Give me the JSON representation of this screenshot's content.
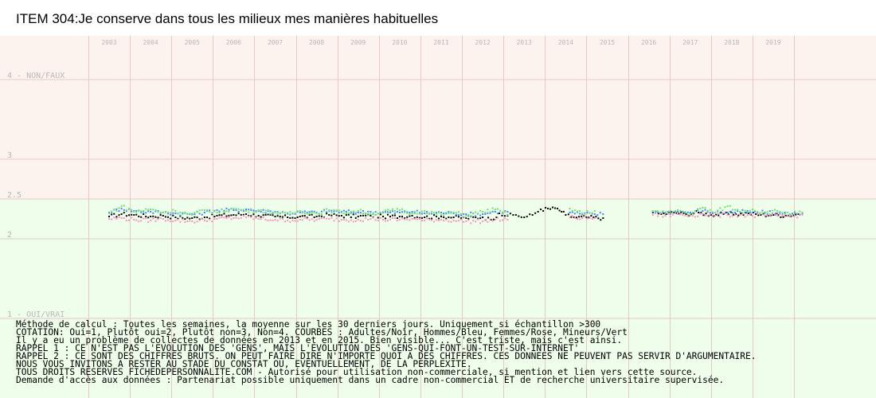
{
  "chart_data": {
    "type": "scatter",
    "title": "ITEM 304:Je conserve dans tous les milieux mes manières habituelles",
    "xlabel": "",
    "ylabel": "",
    "xlim": [
      2002.5,
      2020
    ],
    "ylim": [
      1,
      4
    ],
    "grid": true,
    "x_ticks": [
      "2003",
      "2004",
      "2005",
      "2006",
      "2007",
      "2008",
      "2009",
      "2010",
      "2011",
      "2012",
      "2013",
      "2014",
      "2015",
      "2016",
      "2017",
      "2018",
      "2019"
    ],
    "y_ticks": [
      {
        "value": 4,
        "label": "4 - NON/FAUX"
      },
      {
        "value": 3,
        "label": "3"
      },
      {
        "value": 2.5,
        "label": "2.5"
      },
      {
        "value": 2,
        "label": "2"
      },
      {
        "value": 1,
        "label": "1 - OUI/VRAI"
      }
    ],
    "band_colors": {
      "above_2_5": "#fdf3ee",
      "below_2_5": "#effdeb",
      "grid": "#e6c8c8"
    },
    "series": [
      {
        "color": "#000000",
        "points": [
          [
            2003.0,
            2.28
          ],
          [
            2003.3,
            2.31
          ],
          [
            2003.6,
            2.3
          ],
          [
            2004.0,
            2.28
          ],
          [
            2004.3,
            2.29
          ],
          [
            2004.6,
            2.27
          ],
          [
            2005.0,
            2.26
          ],
          [
            2005.3,
            2.27
          ],
          [
            2005.6,
            2.29
          ],
          [
            2006.0,
            2.3
          ],
          [
            2006.3,
            2.31
          ],
          [
            2006.6,
            2.29
          ],
          [
            2007.0,
            2.28
          ],
          [
            2007.3,
            2.27
          ],
          [
            2007.6,
            2.28
          ],
          [
            2008.0,
            2.28
          ],
          [
            2008.3,
            2.3
          ],
          [
            2008.6,
            2.29
          ],
          [
            2009.0,
            2.28
          ],
          [
            2009.3,
            2.29
          ],
          [
            2009.6,
            2.28
          ],
          [
            2010.0,
            2.28
          ],
          [
            2010.3,
            2.29
          ],
          [
            2010.6,
            2.27
          ],
          [
            2011.0,
            2.28
          ],
          [
            2011.3,
            2.27
          ],
          [
            2011.6,
            2.26
          ],
          [
            2012.0,
            2.27
          ],
          [
            2012.2,
            2.24
          ],
          [
            2012.4,
            2.32
          ],
          [
            2012.6,
            2.29
          ],
          [
            2012.8,
            2.3
          ],
          [
            2013.0,
            2.27
          ],
          [
            2013.2,
            2.3
          ],
          [
            2013.4,
            2.37
          ],
          [
            2013.8,
            2.38
          ],
          [
            2013.9,
            2.34
          ],
          [
            2014.0,
            2.3
          ],
          [
            2014.2,
            2.27
          ],
          [
            2014.5,
            2.27
          ],
          [
            2014.9,
            2.26
          ],
          [
            2016.1,
            2.33
          ],
          [
            2016.3,
            2.31
          ],
          [
            2016.6,
            2.33
          ],
          [
            2016.9,
            2.31
          ],
          [
            2017.2,
            2.33
          ],
          [
            2017.5,
            2.3
          ],
          [
            2017.8,
            2.31
          ],
          [
            2018.1,
            2.31
          ],
          [
            2018.4,
            2.32
          ],
          [
            2018.7,
            2.3
          ],
          [
            2019.0,
            2.3
          ],
          [
            2019.3,
            2.29
          ],
          [
            2019.6,
            2.31
          ]
        ]
      },
      {
        "color": "#3f86ff",
        "points": [
          [
            2003.0,
            2.33
          ],
          [
            2003.3,
            2.38
          ],
          [
            2003.6,
            2.35
          ],
          [
            2004.0,
            2.34
          ],
          [
            2004.3,
            2.33
          ],
          [
            2004.6,
            2.32
          ],
          [
            2005.0,
            2.31
          ],
          [
            2005.3,
            2.33
          ],
          [
            2005.6,
            2.36
          ],
          [
            2006.0,
            2.36
          ],
          [
            2006.3,
            2.37
          ],
          [
            2006.6,
            2.35
          ],
          [
            2007.0,
            2.34
          ],
          [
            2007.3,
            2.32
          ],
          [
            2007.6,
            2.33
          ],
          [
            2008.0,
            2.33
          ],
          [
            2008.3,
            2.35
          ],
          [
            2008.6,
            2.34
          ],
          [
            2009.0,
            2.33
          ],
          [
            2009.3,
            2.34
          ],
          [
            2009.6,
            2.33
          ],
          [
            2010.0,
            2.33
          ],
          [
            2010.3,
            2.34
          ],
          [
            2010.6,
            2.32
          ],
          [
            2011.0,
            2.33
          ],
          [
            2011.3,
            2.32
          ],
          [
            2011.6,
            2.31
          ],
          [
            2012.0,
            2.31
          ],
          [
            2012.3,
            2.34
          ],
          [
            2012.6,
            2.34
          ],
          [
            2014.1,
            2.33
          ],
          [
            2014.4,
            2.31
          ],
          [
            2014.7,
            2.31
          ],
          [
            2014.9,
            2.31
          ],
          [
            2016.1,
            2.34
          ],
          [
            2016.4,
            2.33
          ],
          [
            2016.7,
            2.34
          ],
          [
            2017.0,
            2.33
          ],
          [
            2017.3,
            2.35
          ],
          [
            2017.6,
            2.33
          ],
          [
            2017.9,
            2.33
          ],
          [
            2018.2,
            2.34
          ],
          [
            2018.5,
            2.33
          ],
          [
            2018.8,
            2.33
          ],
          [
            2019.1,
            2.32
          ],
          [
            2019.4,
            2.31
          ],
          [
            2019.7,
            2.32
          ]
        ]
      },
      {
        "color": "#ff8fc8",
        "points": [
          [
            2003.0,
            2.25
          ],
          [
            2003.3,
            2.26
          ],
          [
            2003.6,
            2.24
          ],
          [
            2004.0,
            2.23
          ],
          [
            2004.3,
            2.25
          ],
          [
            2004.6,
            2.23
          ],
          [
            2005.0,
            2.22
          ],
          [
            2005.3,
            2.23
          ],
          [
            2005.6,
            2.25
          ],
          [
            2006.0,
            2.26
          ],
          [
            2006.3,
            2.27
          ],
          [
            2006.6,
            2.25
          ],
          [
            2007.0,
            2.24
          ],
          [
            2007.3,
            2.23
          ],
          [
            2007.6,
            2.24
          ],
          [
            2008.0,
            2.24
          ],
          [
            2008.3,
            2.25
          ],
          [
            2008.6,
            2.24
          ],
          [
            2009.0,
            2.24
          ],
          [
            2009.3,
            2.25
          ],
          [
            2009.6,
            2.24
          ],
          [
            2010.0,
            2.24
          ],
          [
            2010.3,
            2.25
          ],
          [
            2010.6,
            2.23
          ],
          [
            2011.0,
            2.24
          ],
          [
            2011.3,
            2.23
          ],
          [
            2011.6,
            2.22
          ],
          [
            2012.0,
            2.22
          ],
          [
            2012.3,
            2.24
          ],
          [
            2012.6,
            2.24
          ],
          [
            2014.1,
            2.27
          ],
          [
            2014.4,
            2.26
          ],
          [
            2014.7,
            2.26
          ],
          [
            2016.1,
            2.3
          ],
          [
            2016.4,
            2.29
          ],
          [
            2016.7,
            2.31
          ],
          [
            2017.0,
            2.29
          ],
          [
            2017.3,
            2.31
          ],
          [
            2017.6,
            2.29
          ],
          [
            2017.9,
            2.3
          ],
          [
            2018.2,
            2.3
          ],
          [
            2018.5,
            2.29
          ],
          [
            2018.8,
            2.29
          ],
          [
            2019.1,
            2.29
          ],
          [
            2019.4,
            2.28
          ],
          [
            2019.7,
            2.3
          ]
        ]
      },
      {
        "color": "#6fe06f",
        "points": [
          [
            2003.0,
            2.32
          ],
          [
            2003.3,
            2.41
          ],
          [
            2003.6,
            2.34
          ],
          [
            2004.0,
            2.37
          ],
          [
            2004.3,
            2.33
          ],
          [
            2004.6,
            2.35
          ],
          [
            2005.0,
            2.3
          ],
          [
            2005.3,
            2.36
          ],
          [
            2005.6,
            2.33
          ],
          [
            2006.0,
            2.38
          ],
          [
            2006.3,
            2.35
          ],
          [
            2006.6,
            2.36
          ],
          [
            2007.0,
            2.33
          ],
          [
            2007.3,
            2.31
          ],
          [
            2007.6,
            2.35
          ],
          [
            2008.0,
            2.32
          ],
          [
            2008.3,
            2.36
          ],
          [
            2008.6,
            2.33
          ],
          [
            2009.0,
            2.35
          ],
          [
            2009.3,
            2.31
          ],
          [
            2009.6,
            2.34
          ],
          [
            2010.0,
            2.36
          ],
          [
            2010.3,
            2.32
          ],
          [
            2010.6,
            2.35
          ],
          [
            2011.0,
            2.3
          ],
          [
            2011.3,
            2.33
          ],
          [
            2011.6,
            2.29
          ],
          [
            2012.0,
            2.34
          ],
          [
            2012.3,
            2.37
          ],
          [
            2012.6,
            2.3
          ],
          [
            2014.1,
            2.38
          ],
          [
            2014.4,
            2.32
          ],
          [
            2014.7,
            2.35
          ],
          [
            2016.1,
            2.35
          ],
          [
            2016.4,
            2.32
          ],
          [
            2016.7,
            2.36
          ],
          [
            2017.0,
            2.31
          ],
          [
            2017.3,
            2.39
          ],
          [
            2017.6,
            2.33
          ],
          [
            2017.9,
            2.41
          ],
          [
            2018.2,
            2.34
          ],
          [
            2018.5,
            2.37
          ],
          [
            2018.8,
            2.32
          ],
          [
            2019.1,
            2.35
          ],
          [
            2019.4,
            2.31
          ],
          [
            2019.7,
            2.33
          ]
        ]
      }
    ],
    "notes": [
      "Méthode de calcul : Toutes les semaines, la moyenne sur les 30 derniers jours. Uniquement si échantillon >300",
      "COTATION: Oui=1, Plutôt oui=2, Plutôt non=3, Non=4. COURBES : Adultes/Noir, Hommes/Bleu, Femmes/Rose, Mineurs/Vert",
      "Il y a eu un problème de collectes de données en 2013 et en 2015. Bien visible... C'est triste, mais c'est ainsi.",
      "RAPPEL 1 : CE N'EST PAS L'EVOLUTION DES 'GENS', MAIS L'EVOLUTION DES 'GENS-QUI-FONT-UN-TEST-SUR-INTERNET'",
      "RAPPEL 2 : CE SONT DES CHIFFRES BRUTS. ON PEUT FAIRE DIRE N'IMPORTE QUOI A DES CHIFFRES. CES DONNEES NE PEUVENT PAS SERVIR D'ARGUMENTAIRE.",
      "           NOUS VOUS INVITONS A RESTER AU STADE DU CONSTAT OU, EVENTUELLEMENT,  DE LA PERPLEXITE.",
      "TOUS DROITS RESERVES FICHEDEPERSONNALITE.COM - Autorisé pour utilisation non-commerciale, si mention et lien vers cette source.",
      "Demande d'accès aux données : Partenariat possible uniquement dans un cadre non-commercial ET de recherche universitaire supervisée."
    ]
  }
}
